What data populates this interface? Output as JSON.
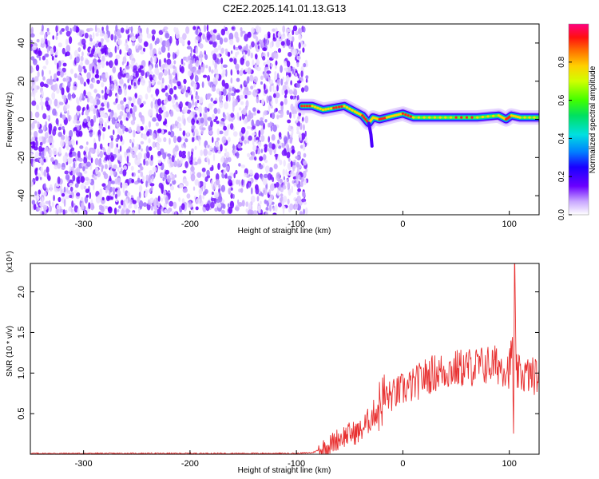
{
  "chart_data": [
    {
      "type": "heatmap",
      "title": "C2E2.2025.141.01.13.G13",
      "xlabel": "Height of straight line (km)",
      "ylabel": "Frequency (Hz)",
      "xlim": [
        -350,
        128
      ],
      "ylim": [
        -50,
        50
      ],
      "x_ticks": [
        "-300",
        "-200",
        "-100",
        "0",
        "100"
      ],
      "y_ticks": [
        "-40",
        "-20",
        "0",
        "20",
        "40"
      ],
      "colorbar": {
        "label": "Normalized spectral amplitude",
        "range": [
          0,
          1
        ],
        "ticks": [
          "0.0",
          "0.2",
          "0.4",
          "0.6",
          "0.8"
        ]
      },
      "noise_region_x": [
        -350,
        -90
      ],
      "noise_frequency_range": [
        -50,
        48
      ],
      "signal_ridge": {
        "x": [
          -95,
          -85,
          -75,
          -65,
          -55,
          -45,
          -38,
          -32,
          -28,
          -22,
          -15,
          -8,
          0,
          10,
          30,
          50,
          70,
          90,
          97,
          102,
          110,
          128
        ],
        "y": [
          7,
          7,
          5,
          6,
          7,
          4,
          2,
          -2,
          1,
          0,
          1,
          2,
          3,
          1,
          1,
          1,
          1,
          2,
          0,
          2,
          1,
          1
        ]
      }
    },
    {
      "type": "line",
      "xlabel": "Height of straight line (km)",
      "ylabel": "SNR (10 * v/v)",
      "y_multiplier": "(x10⁴)",
      "xlim": [
        -350,
        128
      ],
      "ylim": [
        0,
        2.35
      ],
      "x_ticks": [
        "-300",
        "-200",
        "-100",
        "0",
        "100"
      ],
      "y_ticks": [
        "0.5",
        "1.0",
        "1.5",
        "2.0"
      ],
      "series": [
        {
          "color": "#e83030",
          "x": [
            -350,
            -100,
            -85,
            -70,
            -60,
            -50,
            -40,
            -30,
            -22,
            -18,
            -10,
            0,
            10,
            20,
            30,
            40,
            50,
            60,
            70,
            80,
            90,
            100,
            103,
            104,
            105,
            106,
            110,
            120,
            128
          ],
          "y": [
            0.01,
            0.01,
            0.02,
            0.1,
            0.2,
            0.25,
            0.28,
            0.45,
            0.6,
            0.7,
            0.72,
            0.8,
            0.85,
            0.95,
            1.0,
            1.03,
            1.05,
            1.07,
            1.08,
            1.1,
            1.1,
            1.05,
            1.3,
            0.25,
            2.25,
            1.0,
            0.98,
            0.97,
            0.96
          ]
        }
      ]
    }
  ]
}
